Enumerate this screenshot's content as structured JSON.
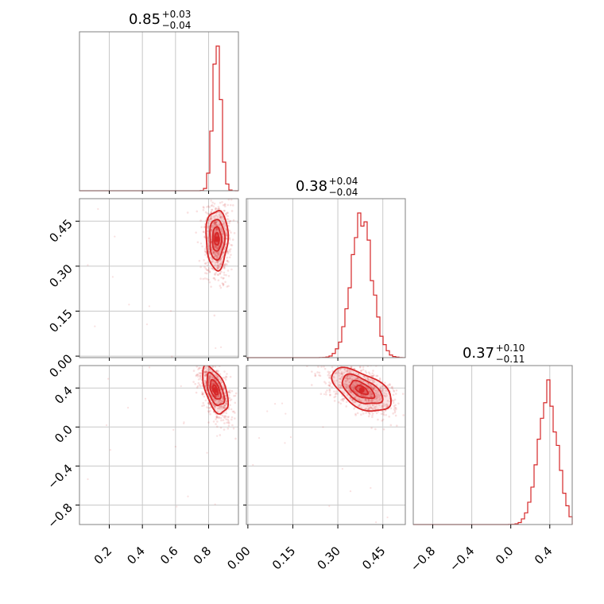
{
  "chart_data": {
    "type": "corner",
    "color": "#d62728",
    "parameters": [
      {
        "median": 0.85,
        "plus": "+0.03",
        "minus": "−0.04",
        "range": [
          0.02,
          0.98
        ],
        "ticks": [
          0.2,
          0.4,
          0.6,
          0.8
        ],
        "tick_labels": [
          "0.2",
          "0.4",
          "0.6",
          "0.8"
        ],
        "hist_peak": 0.85,
        "hist_sigma": 0.025
      },
      {
        "median": 0.38,
        "plus": "+0.04",
        "minus": "−0.04",
        "range": [
          -0.005,
          0.525
        ],
        "ticks": [
          0.0,
          0.15,
          0.3,
          0.45
        ],
        "tick_labels": [
          "0.00",
          "0.15",
          "0.30",
          "0.45"
        ],
        "hist_peak": 0.38,
        "hist_sigma": 0.035
      },
      {
        "median": 0.37,
        "plus": "+0.10",
        "minus": "−0.11",
        "range": [
          -1.0,
          0.63
        ],
        "ticks": [
          -0.8,
          -0.4,
          0.0,
          0.4
        ],
        "tick_labels": [
          "−0.8",
          "−0.4",
          "0.0",
          "0.4"
        ],
        "hist_peak": 0.38,
        "hist_sigma": 0.1
      }
    ],
    "pairs": [
      {
        "x": 0,
        "y": 1,
        "center": [
          0.85,
          0.39
        ],
        "sd": [
          0.03,
          0.045
        ],
        "corr": 0.0
      },
      {
        "x": 0,
        "y": 2,
        "center": [
          0.84,
          0.38
        ],
        "sd": [
          0.035,
          0.11
        ],
        "corr": -0.55
      },
      {
        "x": 1,
        "y": 2,
        "center": [
          0.38,
          0.38
        ],
        "sd": [
          0.045,
          0.1
        ],
        "corr": -0.55
      }
    ],
    "grid": true
  }
}
